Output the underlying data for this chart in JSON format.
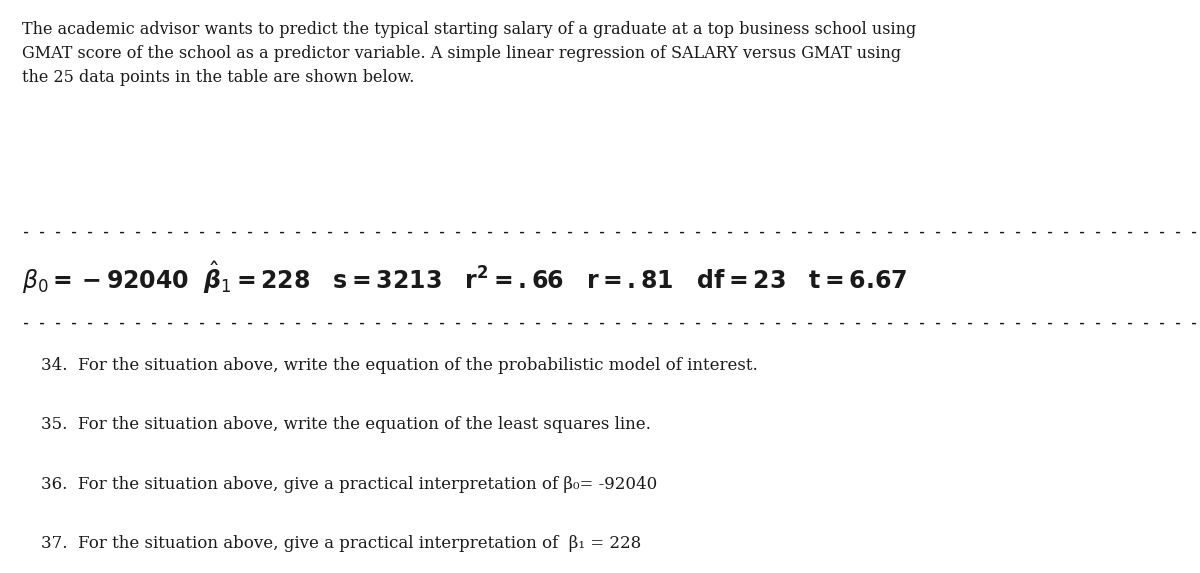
{
  "bg_color": "#ffffff",
  "text_color": "#1a1a1a",
  "intro_text": "The academic advisor wants to predict the typical starting salary of a graduate at a top business school using\nGMAT score of the school as a predictor variable. A simple linear regression of SALARY versus GMAT using\nthe 25 data points in the table are shown below.",
  "stats_line": [
    {
      "text": "β₀ = −92040",
      "bold": true,
      "size": 17
    },
    {
      "text": "  ",
      "bold": false,
      "size": 17
    },
    {
      "text": "β̂₁ = 228",
      "bold": true,
      "size": 17
    },
    {
      "text": "   s = 3213",
      "bold": true,
      "size": 17
    },
    {
      "text": "   r² = .66",
      "bold": true,
      "size": 17
    },
    {
      "text": "   r = .81",
      "bold": true,
      "size": 17
    },
    {
      "text": "   df = 23",
      "bold": true,
      "size": 17
    },
    {
      "text": "   t = 6.67",
      "bold": true,
      "size": 17
    }
  ],
  "questions": [
    "34.  For the situation above, write the equation of the probabilistic model of interest.",
    "35.  For the situation above, write the equation of the least squares line.",
    "36.  For the situation above, give a practical interpretation of β₀= -92040",
    "37.  For the situation above, give a practical interpretation of  β₁ = 228"
  ],
  "dashes": "- - - - - - - - - - - - - - - - - - - - - - - - - - - - - - - - - - - - - - - - - - - - - - - - - - - - - - - - - - - - - - - - - - - - - - - - - - -",
  "fig_width": 12.0,
  "fig_height": 5.73,
  "dpi": 100
}
